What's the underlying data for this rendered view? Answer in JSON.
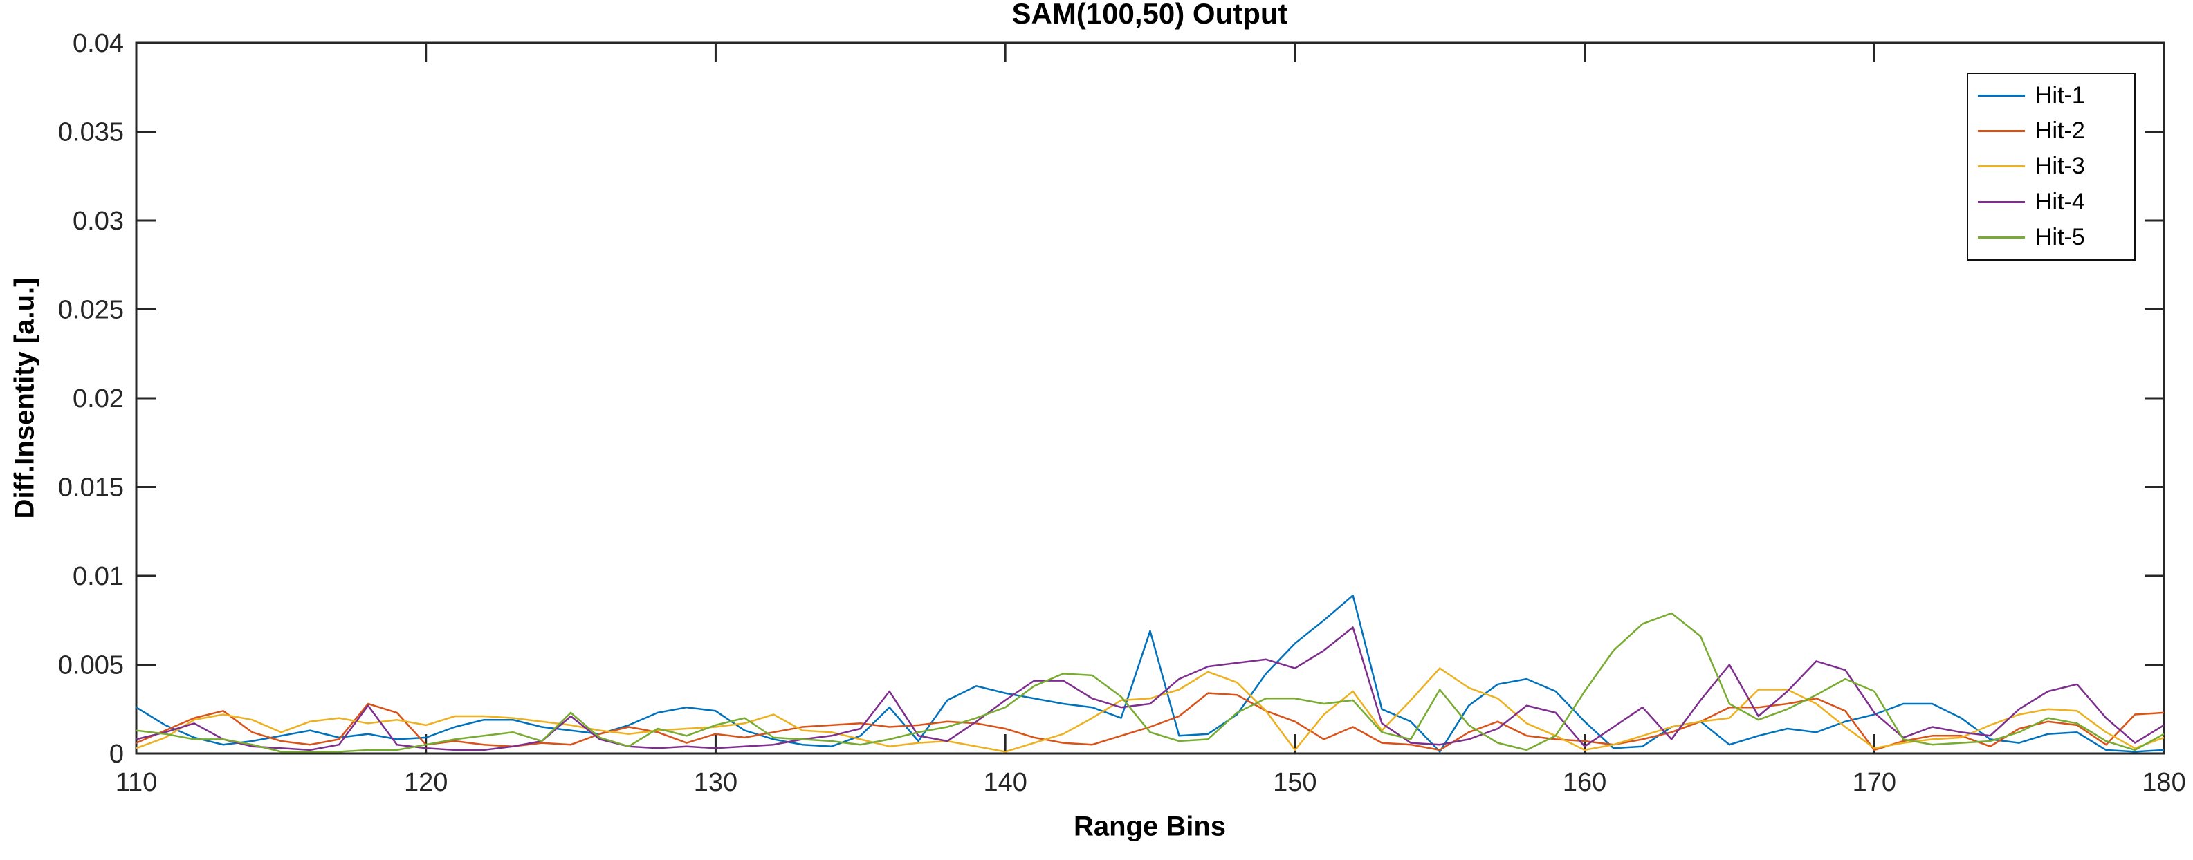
{
  "figure": {
    "title": "SAM(100,50) Output",
    "xlabel": "Range Bins",
    "ylabel": "Diff.Insentity [a.u.]"
  },
  "chart_data": {
    "type": "line",
    "title": "SAM(100,50) Output",
    "xlabel": "Range Bins",
    "ylabel": "Diff.Insentity [a.u.]",
    "xlim": [
      110,
      180
    ],
    "ylim": [
      0,
      0.04
    ],
    "x_ticks": [
      110,
      120,
      130,
      140,
      150,
      160,
      170,
      180
    ],
    "y_ticks": [
      0,
      0.005,
      0.01,
      0.015,
      0.02,
      0.025,
      0.03,
      0.035,
      0.04
    ],
    "grid": false,
    "box": true,
    "legend_position": "northeast",
    "axis_color": "#262626",
    "x_start": 110,
    "x_step": 1,
    "series": [
      {
        "name": "Hit-1",
        "color": "#0072BD",
        "values": [
          0.0026,
          0.0016,
          0.0009,
          0.0005,
          0.0007,
          0.001,
          0.0013,
          0.0009,
          0.0011,
          0.0008,
          0.0009,
          0.0015,
          0.0019,
          0.0019,
          0.0015,
          0.0013,
          0.0011,
          0.0016,
          0.0023,
          0.0026,
          0.0024,
          0.0013,
          0.0008,
          0.0005,
          0.0004,
          0.001,
          0.0026,
          0.0007,
          0.003,
          0.0038,
          0.0034,
          0.0031,
          0.0028,
          0.0026,
          0.002,
          0.0069,
          0.001,
          0.0011,
          0.0022,
          0.0045,
          0.0062,
          0.0075,
          0.0089,
          0.0025,
          0.0018,
          0.0001,
          0.0027,
          0.0039,
          0.0042,
          0.0035,
          0.0018,
          0.0003,
          0.0004,
          0.0015,
          0.0018,
          0.0005,
          0.001,
          0.0014,
          0.0012,
          0.0018,
          0.0022,
          0.0028,
          0.0028,
          0.002,
          0.0008,
          0.0006,
          0.0011,
          0.0012,
          0.0002,
          0.0001,
          0.0002
        ]
      },
      {
        "name": "Hit-2",
        "color": "#D95319",
        "values": [
          0.0006,
          0.0013,
          0.002,
          0.0024,
          0.0012,
          0.0007,
          0.0005,
          0.0008,
          0.0028,
          0.0023,
          0.0005,
          0.0007,
          0.0005,
          0.0004,
          0.0006,
          0.0005,
          0.0011,
          0.0015,
          0.0012,
          0.0006,
          0.0011,
          0.0009,
          0.0012,
          0.0015,
          0.0016,
          0.0017,
          0.0015,
          0.0016,
          0.0018,
          0.0017,
          0.0014,
          0.0009,
          0.0006,
          0.0005,
          0.001,
          0.0015,
          0.0021,
          0.0034,
          0.0033,
          0.0024,
          0.0018,
          0.0008,
          0.0015,
          0.0006,
          0.0005,
          0.0002,
          0.0012,
          0.0018,
          0.001,
          0.0008,
          0.0007,
          0.0005,
          0.0008,
          0.0012,
          0.0018,
          0.0026,
          0.0026,
          0.0028,
          0.0031,
          0.0024,
          0.0002,
          0.0007,
          0.001,
          0.001,
          0.0004,
          0.0014,
          0.0018,
          0.0016,
          0.0005,
          0.0022,
          0.0023
        ]
      },
      {
        "name": "Hit-3",
        "color": "#EDB120",
        "values": [
          0.0003,
          0.0009,
          0.0019,
          0.0022,
          0.0019,
          0.0012,
          0.0018,
          0.002,
          0.0017,
          0.0019,
          0.0016,
          0.0021,
          0.0021,
          0.002,
          0.0018,
          0.0016,
          0.0013,
          0.0011,
          0.0013,
          0.0014,
          0.0015,
          0.0017,
          0.0022,
          0.0013,
          0.0012,
          0.0008,
          0.0004,
          0.0006,
          0.0007,
          0.0004,
          0.0001,
          0.0006,
          0.0011,
          0.002,
          0.003,
          0.0031,
          0.0036,
          0.0046,
          0.004,
          0.0024,
          0.0002,
          0.0022,
          0.0035,
          0.0013,
          0.003,
          0.0048,
          0.0037,
          0.0031,
          0.0017,
          0.001,
          0.0002,
          0.0005,
          0.001,
          0.0015,
          0.0018,
          0.002,
          0.0036,
          0.0036,
          0.0028,
          0.0015,
          0.0003,
          0.0006,
          0.0008,
          0.0009,
          0.0016,
          0.0022,
          0.0025,
          0.0024,
          0.0012,
          0.0003,
          0.0009
        ]
      },
      {
        "name": "Hit-4",
        "color": "#7E2F8E",
        "values": [
          0.0008,
          0.0012,
          0.0017,
          0.0008,
          0.0004,
          0.0003,
          0.0002,
          0.0005,
          0.0027,
          0.0005,
          0.0003,
          0.0002,
          0.0002,
          0.0004,
          0.0007,
          0.0021,
          0.0008,
          0.0004,
          0.0003,
          0.0004,
          0.0003,
          0.0004,
          0.0005,
          0.0008,
          0.001,
          0.0014,
          0.0035,
          0.001,
          0.0007,
          0.0018,
          0.003,
          0.0041,
          0.0041,
          0.0031,
          0.0026,
          0.0028,
          0.0042,
          0.0049,
          0.0051,
          0.0053,
          0.0048,
          0.0058,
          0.0071,
          0.0017,
          0.0006,
          0.0005,
          0.0008,
          0.0014,
          0.0027,
          0.0023,
          0.0004,
          0.0015,
          0.0026,
          0.0008,
          0.003,
          0.005,
          0.0021,
          0.0035,
          0.0052,
          0.0047,
          0.0023,
          0.0009,
          0.0015,
          0.0012,
          0.001,
          0.0025,
          0.0035,
          0.0039,
          0.002,
          0.0006,
          0.0016
        ]
      },
      {
        "name": "Hit-5",
        "color": "#77AC30",
        "values": [
          0.0013,
          0.0011,
          0.0008,
          0.0008,
          0.0005,
          0.0001,
          0.0001,
          0.0001,
          0.0002,
          0.0002,
          0.0005,
          0.0008,
          0.001,
          0.0012,
          0.0007,
          0.0023,
          0.0009,
          0.0004,
          0.0014,
          0.001,
          0.0016,
          0.002,
          0.0009,
          0.0008,
          0.0007,
          0.0005,
          0.0008,
          0.0012,
          0.0015,
          0.002,
          0.0026,
          0.0038,
          0.0045,
          0.0044,
          0.0032,
          0.0012,
          0.0007,
          0.0008,
          0.0023,
          0.0031,
          0.0031,
          0.0028,
          0.003,
          0.0012,
          0.0008,
          0.0036,
          0.0016,
          0.0006,
          0.0002,
          0.001,
          0.0035,
          0.0058,
          0.0073,
          0.0079,
          0.0066,
          0.0028,
          0.0019,
          0.0025,
          0.0033,
          0.0042,
          0.0035,
          0.0008,
          0.0005,
          0.0006,
          0.0007,
          0.0012,
          0.002,
          0.0017,
          0.0007,
          0.0002,
          0.0011
        ]
      }
    ]
  }
}
